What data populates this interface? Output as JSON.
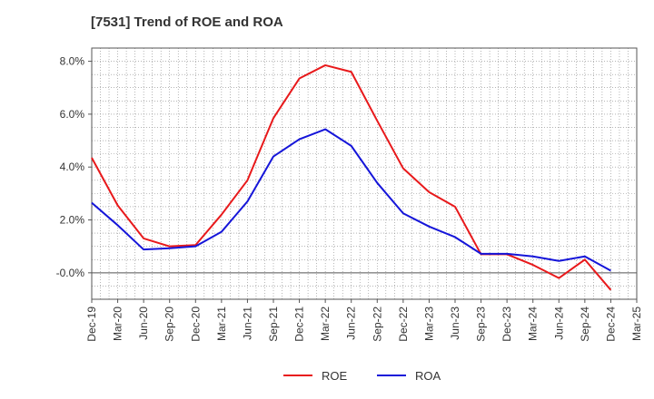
{
  "chart_data": {
    "type": "line",
    "title": "[7531]  Trend of ROE and ROA",
    "xlabel": "",
    "ylabel": "",
    "x": [
      "Dec-19",
      "Mar-20",
      "Jun-20",
      "Sep-20",
      "Dec-20",
      "Mar-21",
      "Jun-21",
      "Sep-21",
      "Dec-21",
      "Mar-22",
      "Jun-22",
      "Sep-22",
      "Dec-22",
      "Mar-23",
      "Jun-23",
      "Sep-23",
      "Dec-23",
      "Mar-24",
      "Jun-24",
      "Sep-24",
      "Dec-24",
      "Mar-25"
    ],
    "ylim": [
      -1.0,
      8.5
    ],
    "yticks": [
      -0.0,
      2.0,
      4.0,
      6.0,
      8.0
    ],
    "ytick_labels": [
      "-0.0%",
      "2.0%",
      "4.0%",
      "6.0%",
      "8.0%"
    ],
    "grid": true,
    "legend_position": "bottom",
    "series": [
      {
        "name": "ROE",
        "color": "#e8191b",
        "values": [
          4.35,
          2.55,
          1.3,
          1.0,
          1.05,
          2.2,
          3.5,
          5.85,
          7.35,
          7.85,
          7.6,
          5.75,
          3.95,
          3.05,
          2.5,
          0.7,
          0.7,
          0.3,
          -0.2,
          0.5,
          -0.65,
          null
        ]
      },
      {
        "name": "ROA",
        "color": "#1515d9",
        "values": [
          2.65,
          1.8,
          0.88,
          0.93,
          1.0,
          1.55,
          2.7,
          4.4,
          5.05,
          5.43,
          4.8,
          3.4,
          2.25,
          1.75,
          1.35,
          0.72,
          0.72,
          0.62,
          0.45,
          0.62,
          0.08,
          null
        ]
      }
    ]
  }
}
